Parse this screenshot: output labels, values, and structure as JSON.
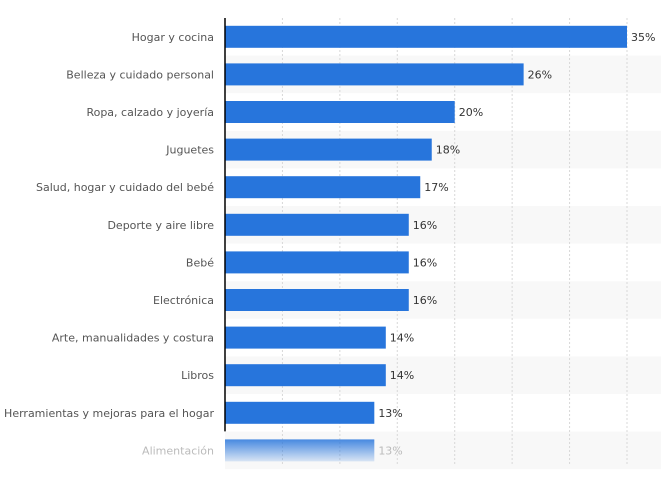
{
  "chart_data": {
    "type": "bar",
    "orientation": "horizontal",
    "title": "",
    "xlabel": "",
    "ylabel": "",
    "xlim": [
      0,
      35
    ],
    "grid": true,
    "grid_step": 5,
    "bar_color": "#2775dc",
    "categories": [
      "Hogar y cocina",
      "Belleza y cuidado personal",
      "Ropa, calzado y joyería",
      "Juguetes",
      "Salud, hogar y cuidado del bebé",
      "Deporte y aire libre",
      "Bebé",
      "Electrónica",
      "Arte, manualidades y costura",
      "Libros",
      "Herramientas y mejoras para el hogar",
      "Alimentación"
    ],
    "values": [
      35,
      26,
      20,
      18,
      17,
      16,
      16,
      16,
      14,
      14,
      13,
      13
    ],
    "value_labels": [
      "35%",
      "26%",
      "20%",
      "18%",
      "17%",
      "16%",
      "16%",
      "16%",
      "14%",
      "14%",
      "13%",
      "13%"
    ],
    "faded_last_row": true
  }
}
